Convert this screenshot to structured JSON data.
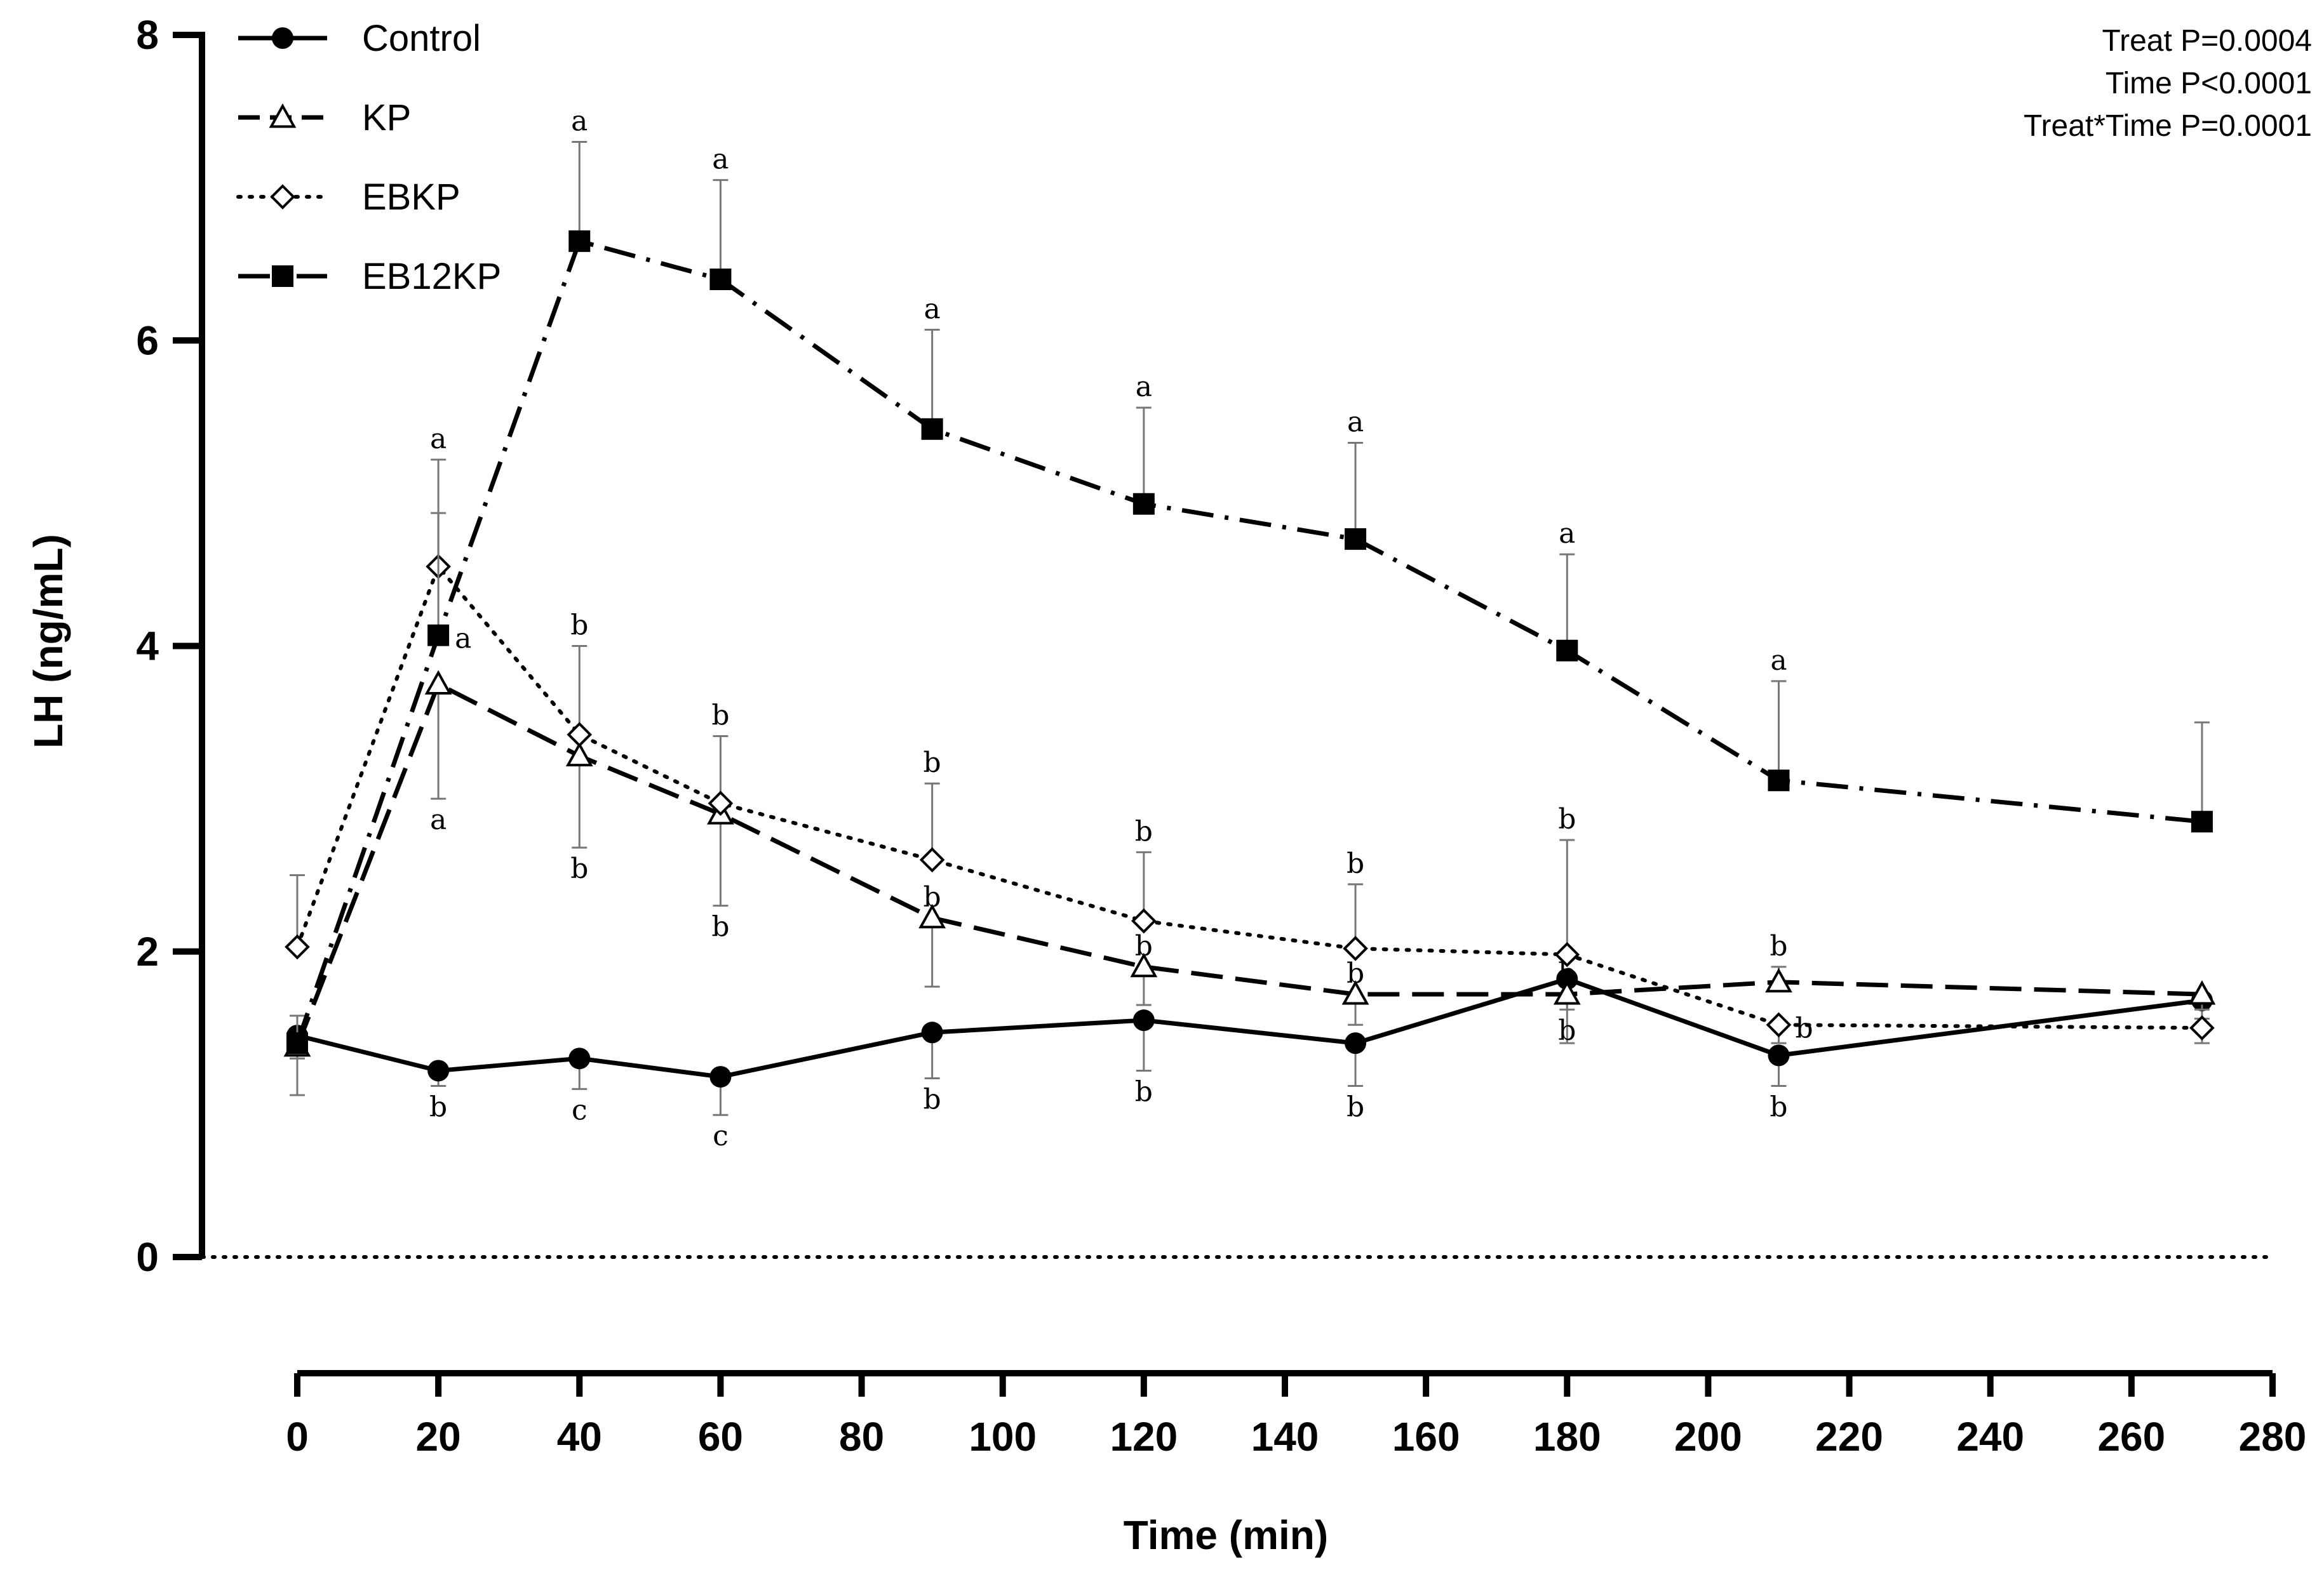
{
  "chart_data": {
    "type": "line",
    "title": "",
    "xlabel": "Time (min)",
    "ylabel": "LH (ng/mL)",
    "xlim": [
      0,
      280
    ],
    "ylim": [
      0,
      8
    ],
    "x_ticks": [
      "0",
      "20",
      "40",
      "60",
      "80",
      "100",
      "120",
      "140",
      "160",
      "180",
      "200",
      "220",
      "240",
      "260",
      "280"
    ],
    "y_ticks": [
      "0",
      "2",
      "4",
      "6",
      "8"
    ],
    "x": [
      0,
      20,
      40,
      60,
      90,
      120,
      150,
      180,
      210,
      270
    ],
    "stats": [
      "Treat P=0.0004",
      "Time P<0.0001",
      "Treat*Time P=0.0001"
    ],
    "legend_position": "top-left",
    "series": [
      {
        "name": "Control",
        "marker": "filled-circle",
        "line": "solid",
        "values": [
          1.45,
          1.22,
          1.3,
          1.18,
          1.47,
          1.55,
          1.4,
          1.82,
          1.32,
          1.68
        ],
        "error": [
          0.15,
          0.1,
          0.2,
          0.25,
          0.3,
          0.33,
          0.28,
          0.2,
          0.2,
          0.12
        ],
        "err_dir": [
          -1,
          -1,
          -1,
          -1,
          -1,
          -1,
          -1,
          -1,
          -1,
          -1
        ],
        "letters": [
          "",
          "b",
          "c",
          "c",
          "b",
          "b",
          "b",
          "b",
          "b",
          ""
        ],
        "letter_side": [
          "",
          "below",
          "below",
          "below",
          "below",
          "below",
          "below",
          "below",
          "below",
          ""
        ]
      },
      {
        "name": "KP",
        "marker": "open-triangle",
        "line": "dashed",
        "values": [
          1.38,
          3.75,
          3.28,
          2.9,
          2.22,
          1.9,
          1.72,
          1.72,
          1.8,
          1.72
        ],
        "error": [
          0.32,
          0.75,
          0.6,
          0.6,
          0.45,
          0.25,
          0.2,
          0.32,
          0.1,
          0.1
        ],
        "err_dir": [
          -1,
          -1,
          -1,
          -1,
          -1,
          -1,
          -1,
          -1,
          1,
          -1
        ],
        "letters": [
          "",
          "a",
          "b",
          "b",
          "b",
          "b",
          "b",
          "b",
          "b",
          ""
        ],
        "letter_side": [
          "",
          "below",
          "below",
          "below",
          "above",
          "above",
          "above",
          "above",
          "above",
          ""
        ]
      },
      {
        "name": "EBKP",
        "marker": "open-diamond",
        "line": "dotted",
        "values": [
          2.03,
          4.52,
          3.42,
          2.97,
          2.6,
          2.2,
          2.02,
          1.98,
          1.52,
          1.5
        ],
        "error": [
          0.47,
          0.7,
          0.58,
          0.44,
          0.5,
          0.45,
          0.42,
          0.75,
          0.12,
          0.1
        ],
        "err_dir": [
          1,
          1,
          1,
          1,
          1,
          1,
          1,
          1,
          -1,
          -1
        ],
        "letters": [
          "",
          "a",
          "b",
          "b",
          "b",
          "b",
          "b",
          "b",
          "b",
          ""
        ],
        "letter_side": [
          "",
          "above",
          "above",
          "above",
          "above",
          "above",
          "above",
          "above",
          "right",
          ""
        ]
      },
      {
        "name": "EB12KP",
        "marker": "filled-square",
        "line": "dash-dot",
        "values": [
          1.4,
          4.07,
          6.65,
          6.4,
          5.42,
          4.93,
          4.7,
          3.97,
          3.12,
          2.85
        ],
        "error": [
          0.18,
          0.8,
          0.65,
          0.65,
          0.65,
          0.63,
          0.63,
          0.63,
          0.65,
          0.65
        ],
        "err_dir": [
          1,
          1,
          1,
          1,
          1,
          1,
          1,
          1,
          1,
          1
        ],
        "letters": [
          "",
          "a",
          "a",
          "a",
          "a",
          "a",
          "a",
          "a",
          "a",
          ""
        ],
        "letter_side": [
          "",
          "right",
          "above",
          "above",
          "above",
          "above",
          "above",
          "above",
          "above",
          ""
        ]
      }
    ]
  }
}
